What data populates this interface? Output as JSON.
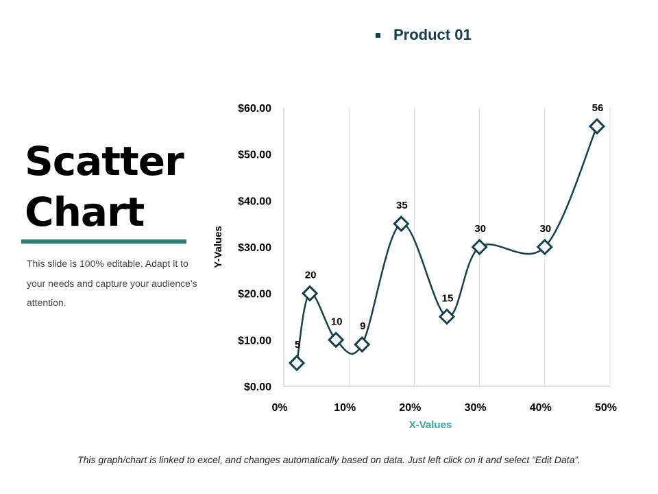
{
  "slide": {
    "title_line1": "Scatter",
    "title_line2": "Chart",
    "description": "This slide is 100% editable. Adapt it to your needs and capture your audience's attention.",
    "footer": "This graph/chart is linked to excel, and changes automatically based on data. Just left click on it and select “Edit Data”."
  },
  "colors": {
    "accent": "#2a7c78",
    "series": "#14404c",
    "marker_fill": "#ffffff",
    "grid": "#d9d9d9",
    "axis_title": "#2fa89a"
  },
  "chart_data": {
    "type": "scatter",
    "smooth": true,
    "marker": "diamond",
    "xlabel": "X-Values",
    "ylabel": "Y-Values",
    "xlim": [
      0,
      0.5
    ],
    "ylim": [
      0,
      60
    ],
    "x_ticks": [
      0,
      0.1,
      0.2,
      0.3,
      0.4,
      0.5
    ],
    "x_tick_labels": [
      "0%",
      "10%",
      "20%",
      "30%",
      "40%",
      "50%"
    ],
    "y_ticks": [
      0,
      10,
      20,
      30,
      40,
      50,
      60
    ],
    "y_tick_labels": [
      "$0.00",
      "$10.00",
      "$20.00",
      "$30.00",
      "$40.00",
      "$50.00",
      "$60.00"
    ],
    "grid": "vertical",
    "legend_position": "top",
    "series": [
      {
        "name": "Product 01",
        "points": [
          {
            "x": 0.02,
            "y": 5,
            "label": "5"
          },
          {
            "x": 0.04,
            "y": 20,
            "label": "20"
          },
          {
            "x": 0.08,
            "y": 10,
            "label": "10"
          },
          {
            "x": 0.12,
            "y": 9,
            "label": "9"
          },
          {
            "x": 0.18,
            "y": 35,
            "label": "35"
          },
          {
            "x": 0.25,
            "y": 15,
            "label": "15"
          },
          {
            "x": 0.3,
            "y": 30,
            "label": "30"
          },
          {
            "x": 0.4,
            "y": 30,
            "label": "30"
          },
          {
            "x": 0.48,
            "y": 56,
            "label": "56"
          }
        ]
      }
    ]
  }
}
